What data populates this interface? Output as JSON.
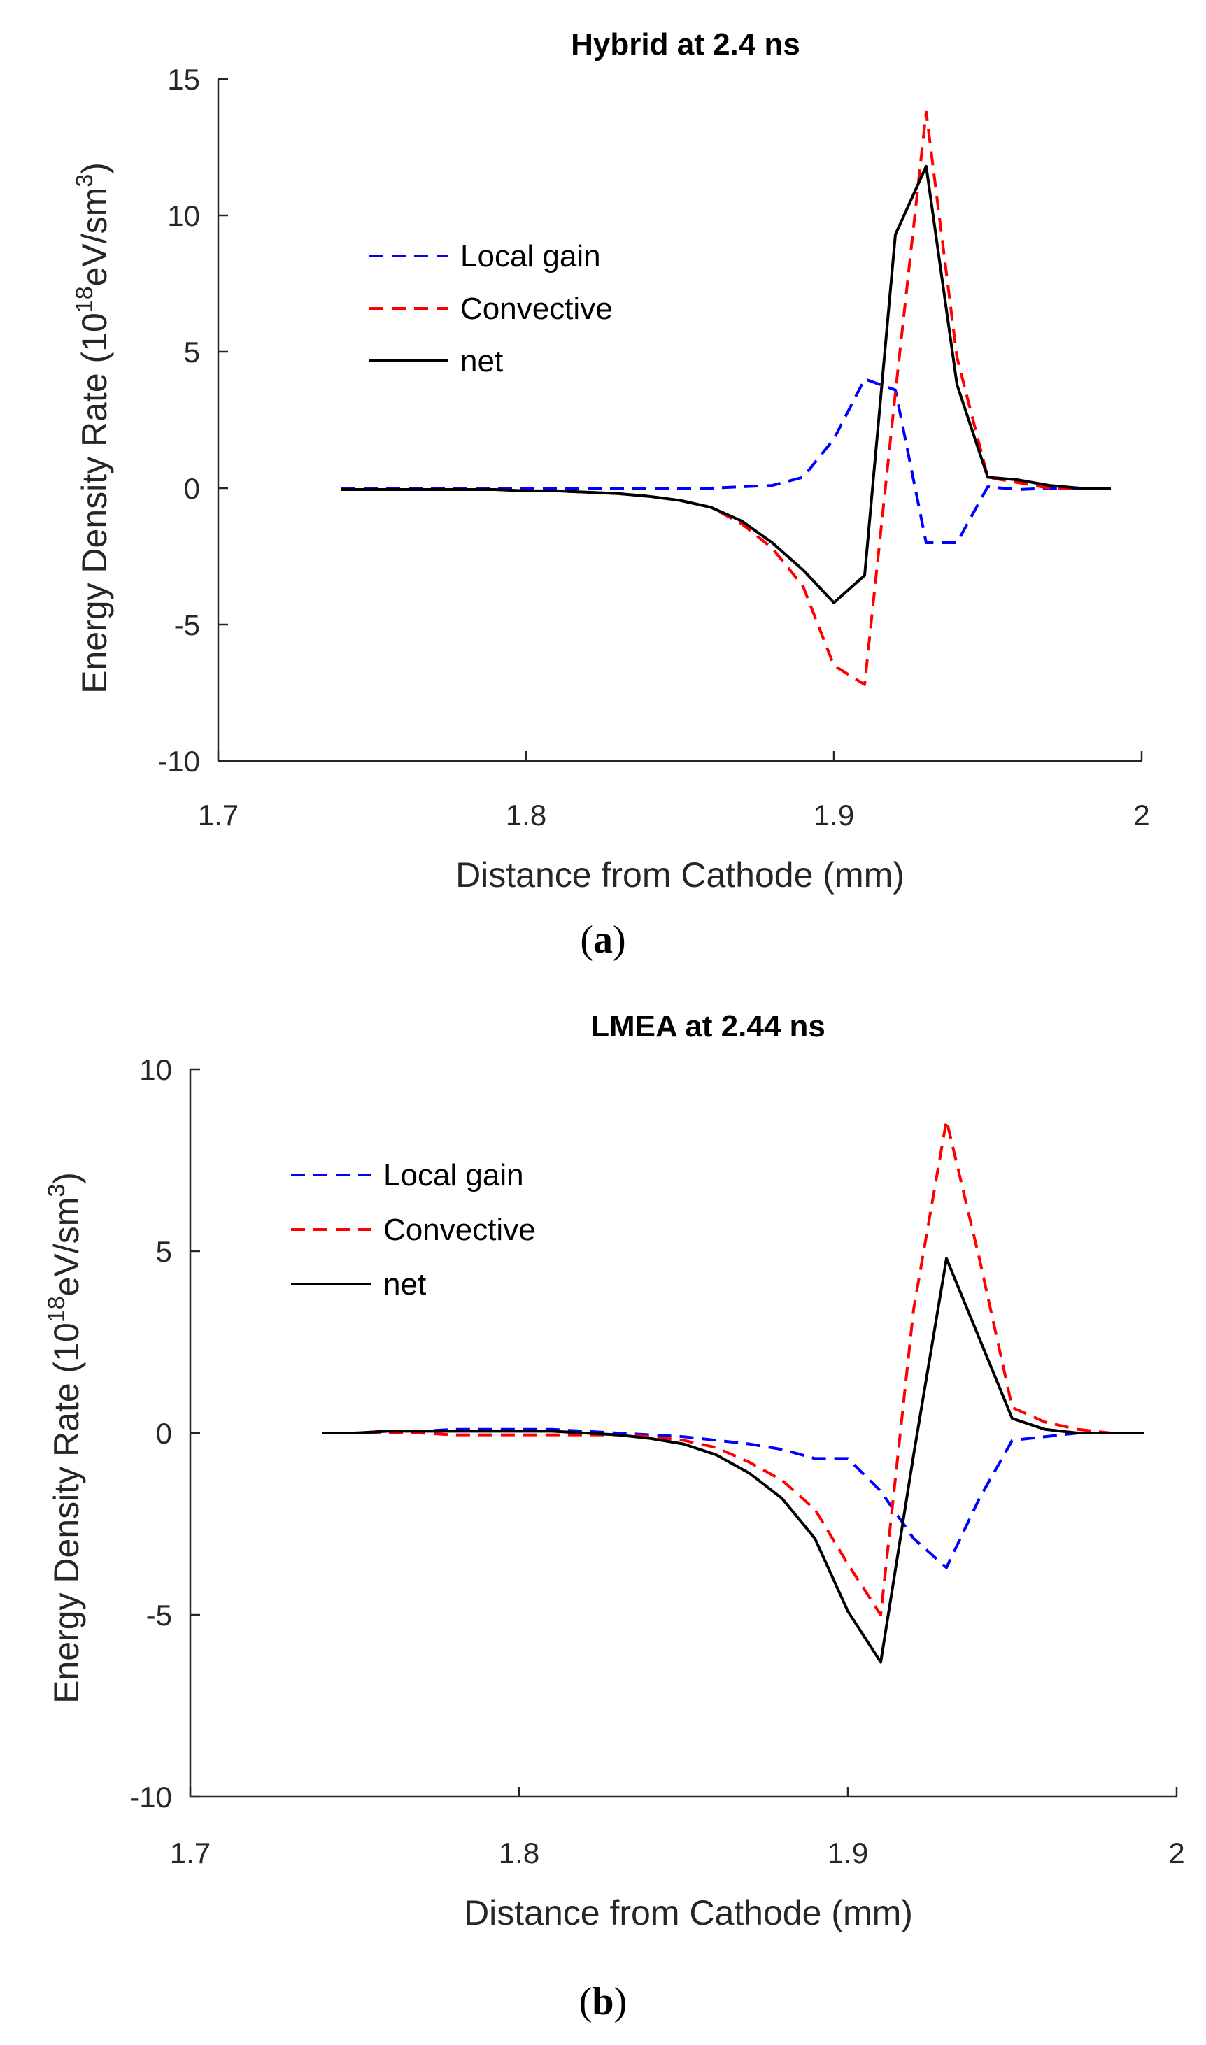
{
  "chart_data": [
    {
      "type": "line",
      "title": "Hybrid at 2.4 ns",
      "xlabel": "Distance from Cathode (mm)",
      "ylabel_main": "Energy Density Rate (10",
      "ylabel_sup1": "18",
      "ylabel_mid": "eV/sm",
      "ylabel_sup2": "3",
      "ylabel_end": ")",
      "xlim": [
        1.7,
        2.0
      ],
      "ylim": [
        -10,
        15
      ],
      "xticks": [
        1.7,
        1.8,
        1.9,
        2.0
      ],
      "xtick_labels": [
        "1.7",
        "1.8",
        "1.9",
        "2"
      ],
      "yticks": [
        -10,
        -5,
        0,
        5,
        10,
        15
      ],
      "ytick_labels": [
        "-10",
        "-5",
        "0",
        "5",
        "10",
        "15"
      ],
      "legend_position": "upper-left",
      "caption": "a",
      "series": [
        {
          "name": "Local gain",
          "color": "#0000ff",
          "style": "dashed",
          "x": [
            1.74,
            1.75,
            1.76,
            1.77,
            1.78,
            1.79,
            1.8,
            1.81,
            1.82,
            1.83,
            1.84,
            1.85,
            1.86,
            1.87,
            1.88,
            1.89,
            1.9,
            1.91,
            1.92,
            1.93,
            1.94,
            1.95,
            1.96,
            1.97,
            1.98,
            1.99
          ],
          "y": [
            0.0,
            0.0,
            0.0,
            0.0,
            0.0,
            0.0,
            0.0,
            0.0,
            0.0,
            0.0,
            0.0,
            0.0,
            0.0,
            0.05,
            0.1,
            0.4,
            1.8,
            4.0,
            3.6,
            -2.0,
            -2.0,
            0.05,
            -0.05,
            0.0,
            0.0,
            0.0
          ]
        },
        {
          "name": "Convective",
          "color": "#ff0000",
          "style": "dashed",
          "x": [
            1.74,
            1.75,
            1.76,
            1.77,
            1.78,
            1.79,
            1.8,
            1.81,
            1.82,
            1.83,
            1.84,
            1.85,
            1.86,
            1.87,
            1.88,
            1.89,
            1.9,
            1.91,
            1.92,
            1.93,
            1.94,
            1.95,
            1.96,
            1.97,
            1.98,
            1.99
          ],
          "y": [
            -0.05,
            -0.05,
            -0.05,
            -0.05,
            -0.05,
            -0.05,
            -0.1,
            -0.1,
            -0.15,
            -0.2,
            -0.3,
            -0.45,
            -0.7,
            -1.3,
            -2.2,
            -3.6,
            -6.5,
            -7.2,
            3.5,
            13.8,
            4.8,
            0.4,
            0.2,
            0.0,
            0.0,
            0.0
          ]
        },
        {
          "name": "net",
          "color": "#000000",
          "style": "solid",
          "x": [
            1.74,
            1.75,
            1.76,
            1.77,
            1.78,
            1.79,
            1.8,
            1.81,
            1.82,
            1.83,
            1.84,
            1.85,
            1.86,
            1.87,
            1.88,
            1.89,
            1.9,
            1.91,
            1.92,
            1.93,
            1.94,
            1.95,
            1.96,
            1.97,
            1.98,
            1.99
          ],
          "y": [
            -0.05,
            -0.05,
            -0.05,
            -0.05,
            -0.05,
            -0.05,
            -0.1,
            -0.1,
            -0.15,
            -0.2,
            -0.3,
            -0.45,
            -0.7,
            -1.2,
            -2.0,
            -3.0,
            -4.2,
            -3.2,
            9.3,
            11.8,
            3.8,
            0.4,
            0.3,
            0.1,
            0.0,
            0.0
          ]
        }
      ]
    },
    {
      "type": "line",
      "title": "LMEA at 2.44 ns",
      "xlabel": "Distance from Cathode (mm)",
      "ylabel_main": "Energy Density Rate (10",
      "ylabel_sup1": "18",
      "ylabel_mid": "eV/sm",
      "ylabel_sup2": "3",
      "ylabel_end": ")",
      "xlim": [
        1.7,
        2.0
      ],
      "ylim": [
        -10,
        10
      ],
      "xticks": [
        1.7,
        1.8,
        1.9,
        2.0
      ],
      "xtick_labels": [
        "1.7",
        "1.8",
        "1.9",
        "2"
      ],
      "yticks": [
        -10,
        -5,
        0,
        5,
        10
      ],
      "ytick_labels": [
        "-10",
        "-5",
        "0",
        "5",
        "10"
      ],
      "legend_position": "upper-left",
      "caption": "b",
      "series": [
        {
          "name": "Local gain",
          "color": "#0000ff",
          "style": "dashed",
          "x": [
            1.74,
            1.75,
            1.76,
            1.77,
            1.78,
            1.79,
            1.8,
            1.81,
            1.82,
            1.83,
            1.84,
            1.85,
            1.86,
            1.87,
            1.88,
            1.89,
            1.9,
            1.91,
            1.92,
            1.93,
            1.94,
            1.95,
            1.96,
            1.97,
            1.98,
            1.99
          ],
          "y": [
            0.0,
            0.0,
            0.05,
            0.05,
            0.1,
            0.1,
            0.1,
            0.1,
            0.05,
            0.0,
            -0.05,
            -0.1,
            -0.2,
            -0.3,
            -0.45,
            -0.7,
            -0.7,
            -1.6,
            -2.9,
            -3.7,
            -1.8,
            -0.2,
            -0.1,
            0.0,
            0.0,
            0.0
          ]
        },
        {
          "name": "Convective",
          "color": "#ff0000",
          "style": "dashed",
          "x": [
            1.74,
            1.75,
            1.76,
            1.77,
            1.78,
            1.79,
            1.8,
            1.81,
            1.82,
            1.83,
            1.84,
            1.85,
            1.86,
            1.87,
            1.88,
            1.89,
            1.9,
            1.91,
            1.92,
            1.93,
            1.94,
            1.95,
            1.96,
            1.97,
            1.98,
            1.99
          ],
          "y": [
            0.0,
            0.0,
            0.0,
            0.0,
            -0.05,
            -0.05,
            -0.05,
            -0.05,
            -0.05,
            -0.05,
            -0.1,
            -0.2,
            -0.4,
            -0.8,
            -1.3,
            -2.1,
            -3.6,
            -5.0,
            3.4,
            8.6,
            4.8,
            0.7,
            0.3,
            0.1,
            0.0,
            0.0
          ]
        },
        {
          "name": "net",
          "color": "#000000",
          "style": "solid",
          "x": [
            1.74,
            1.75,
            1.76,
            1.77,
            1.78,
            1.79,
            1.8,
            1.81,
            1.82,
            1.83,
            1.84,
            1.85,
            1.86,
            1.87,
            1.88,
            1.89,
            1.9,
            1.91,
            1.92,
            1.93,
            1.94,
            1.95,
            1.96,
            1.97,
            1.98,
            1.99
          ],
          "y": [
            0.0,
            0.0,
            0.05,
            0.05,
            0.05,
            0.05,
            0.05,
            0.05,
            0.0,
            -0.05,
            -0.15,
            -0.3,
            -0.6,
            -1.1,
            -1.8,
            -2.9,
            -4.9,
            -6.3,
            -0.6,
            4.8,
            2.6,
            0.4,
            0.1,
            0.0,
            0.0,
            0.0
          ]
        }
      ]
    }
  ]
}
